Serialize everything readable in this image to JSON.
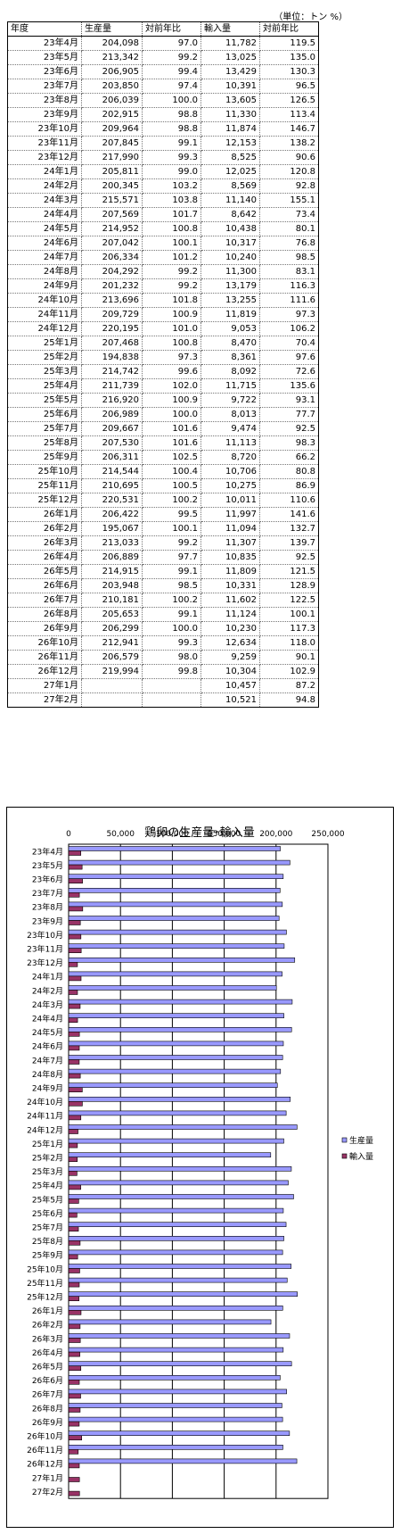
{
  "table": {
    "unit_note": "（単位：トン %）",
    "headers": [
      "年度",
      "生産量",
      "対前年比",
      "輸入量",
      "対前年比"
    ],
    "rows": [
      [
        "23年4月",
        "204,098",
        "97.0",
        "11,782",
        "119.5"
      ],
      [
        "23年5月",
        "213,342",
        "99.2",
        "13,025",
        "135.0"
      ],
      [
        "23年6月",
        "206,905",
        "99.4",
        "13,429",
        "130.3"
      ],
      [
        "23年7月",
        "203,850",
        "97.4",
        "10,391",
        "96.5"
      ],
      [
        "23年8月",
        "206,039",
        "100.0",
        "13,605",
        "126.5"
      ],
      [
        "23年9月",
        "202,915",
        "98.8",
        "11,330",
        "113.4"
      ],
      [
        "23年10月",
        "209,964",
        "98.8",
        "11,874",
        "146.7"
      ],
      [
        "23年11月",
        "207,845",
        "99.1",
        "12,153",
        "138.2"
      ],
      [
        "23年12月",
        "217,990",
        "99.3",
        "8,525",
        "90.6"
      ],
      [
        "24年1月",
        "205,811",
        "99.0",
        "12,025",
        "120.8"
      ],
      [
        "24年2月",
        "200,345",
        "103.2",
        "8,569",
        "92.8"
      ],
      [
        "24年3月",
        "215,571",
        "103.8",
        "11,140",
        "155.1"
      ],
      [
        "24年4月",
        "207,569",
        "101.7",
        "8,642",
        "73.4"
      ],
      [
        "24年5月",
        "214,952",
        "100.8",
        "10,438",
        "80.1"
      ],
      [
        "24年6月",
        "207,042",
        "100.1",
        "10,317",
        "76.8"
      ],
      [
        "24年7月",
        "206,334",
        "101.2",
        "10,240",
        "98.5"
      ],
      [
        "24年8月",
        "204,292",
        "99.2",
        "11,300",
        "83.1"
      ],
      [
        "24年9月",
        "201,232",
        "99.2",
        "13,179",
        "116.3"
      ],
      [
        "24年10月",
        "213,696",
        "101.8",
        "13,255",
        "111.6"
      ],
      [
        "24年11月",
        "209,729",
        "100.9",
        "11,819",
        "97.3"
      ],
      [
        "24年12月",
        "220,195",
        "101.0",
        "9,053",
        "106.2"
      ],
      [
        "25年1月",
        "207,468",
        "100.8",
        "8,470",
        "70.4"
      ],
      [
        "25年2月",
        "194,838",
        "97.3",
        "8,361",
        "97.6"
      ],
      [
        "25年3月",
        "214,742",
        "99.6",
        "8,092",
        "72.6"
      ],
      [
        "25年4月",
        "211,739",
        "102.0",
        "11,715",
        "135.6"
      ],
      [
        "25年5月",
        "216,920",
        "100.9",
        "9,722",
        "93.1"
      ],
      [
        "25年6月",
        "206,989",
        "100.0",
        "8,013",
        "77.7"
      ],
      [
        "25年7月",
        "209,667",
        "101.6",
        "9,474",
        "92.5"
      ],
      [
        "25年8月",
        "207,530",
        "101.6",
        "11,113",
        "98.3"
      ],
      [
        "25年9月",
        "206,311",
        "102.5",
        "8,720",
        "66.2"
      ],
      [
        "25年10月",
        "214,544",
        "100.4",
        "10,706",
        "80.8"
      ],
      [
        "25年11月",
        "210,695",
        "100.5",
        "10,275",
        "86.9"
      ],
      [
        "25年12月",
        "220,531",
        "100.2",
        "10,011",
        "110.6"
      ],
      [
        "26年1月",
        "206,422",
        "99.5",
        "11,997",
        "141.6"
      ],
      [
        "26年2月",
        "195,067",
        "100.1",
        "11,094",
        "132.7"
      ],
      [
        "26年3月",
        "213,033",
        "99.2",
        "11,307",
        "139.7"
      ],
      [
        "26年4月",
        "206,889",
        "97.7",
        "10,835",
        "92.5"
      ],
      [
        "26年5月",
        "214,915",
        "99.1",
        "11,809",
        "121.5"
      ],
      [
        "26年6月",
        "203,948",
        "98.5",
        "10,331",
        "128.9"
      ],
      [
        "26年7月",
        "210,181",
        "100.2",
        "11,602",
        "122.5"
      ],
      [
        "26年8月",
        "205,653",
        "99.1",
        "11,124",
        "100.1"
      ],
      [
        "26年9月",
        "206,299",
        "100.0",
        "10,230",
        "117.3"
      ],
      [
        "26年10月",
        "212,941",
        "99.3",
        "12,634",
        "118.0"
      ],
      [
        "26年11月",
        "206,579",
        "98.0",
        "9,259",
        "90.1"
      ],
      [
        "26年12月",
        "219,994",
        "99.8",
        "10,304",
        "102.9"
      ],
      [
        "27年1月",
        "",
        "",
        "10,457",
        "87.2"
      ],
      [
        "27年2月",
        "",
        "",
        "10,521",
        "94.8"
      ]
    ]
  },
  "chart_data": {
    "type": "bar",
    "orientation": "horizontal",
    "title": "鶏卵の生産量･輸入量",
    "xlim": [
      0,
      250000
    ],
    "xticks": [
      0,
      50000,
      100000,
      150000,
      200000,
      250000
    ],
    "xtick_labels": [
      "0",
      "50,000",
      "100,000",
      "150,000",
      "200,000",
      "250,000"
    ],
    "grid": true,
    "legend_position": "right",
    "categories": [
      "23年4月",
      "23年5月",
      "23年6月",
      "23年7月",
      "23年8月",
      "23年9月",
      "23年10月",
      "23年11月",
      "23年12月",
      "24年1月",
      "24年2月",
      "24年3月",
      "24年4月",
      "24年5月",
      "24年6月",
      "24年7月",
      "24年8月",
      "24年9月",
      "24年10月",
      "24年11月",
      "24年12月",
      "25年1月",
      "25年2月",
      "25年3月",
      "25年4月",
      "25年5月",
      "25年6月",
      "25年7月",
      "25年8月",
      "25年9月",
      "25年10月",
      "25年11月",
      "25年12月",
      "26年1月",
      "26年2月",
      "26年3月",
      "26年4月",
      "26年5月",
      "26年6月",
      "26年7月",
      "26年8月",
      "26年9月",
      "26年10月",
      "26年11月",
      "26年12月",
      "27年1月",
      "27年2月"
    ],
    "series": [
      {
        "name": "生産量",
        "color": "#9999ff",
        "values": [
          204098,
          213342,
          206905,
          203850,
          206039,
          202915,
          209964,
          207845,
          217990,
          205811,
          200345,
          215571,
          207569,
          214952,
          207042,
          206334,
          204292,
          201232,
          213696,
          209729,
          220195,
          207468,
          194838,
          214742,
          211739,
          216920,
          206989,
          209667,
          207530,
          206311,
          214544,
          210695,
          220531,
          206422,
          195067,
          213033,
          206889,
          214915,
          203948,
          210181,
          205653,
          206299,
          212941,
          206579,
          219994,
          null,
          null
        ]
      },
      {
        "name": "輸入量",
        "color": "#993366",
        "values": [
          11782,
          13025,
          13429,
          10391,
          13605,
          11330,
          11874,
          12153,
          8525,
          12025,
          8569,
          11140,
          8642,
          10438,
          10317,
          10240,
          11300,
          13179,
          13255,
          11819,
          9053,
          8470,
          8361,
          8092,
          11715,
          9722,
          8013,
          9474,
          11113,
          8720,
          10706,
          10275,
          10011,
          11997,
          11094,
          11307,
          10835,
          11809,
          10331,
          11602,
          11124,
          10230,
          12634,
          9259,
          10304,
          10457,
          10521
        ]
      }
    ]
  }
}
